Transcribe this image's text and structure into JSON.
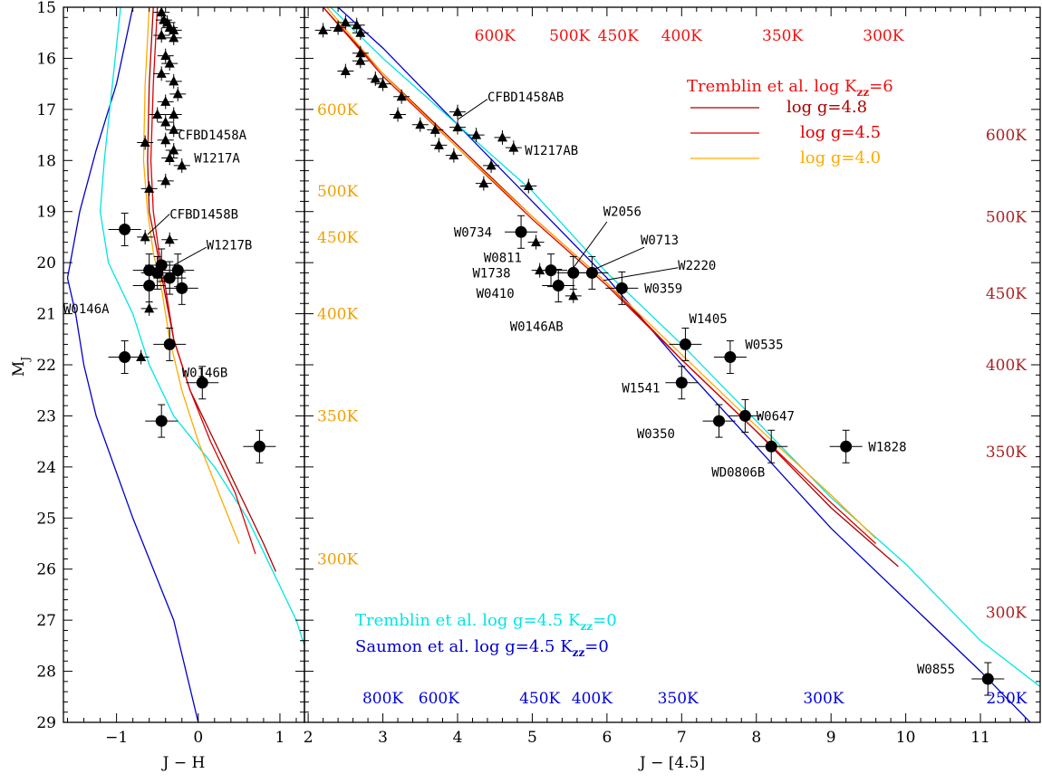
{
  "chart_data": [
    {
      "panel": "left",
      "type": "scatter",
      "xlabel": "J − H",
      "ylabel": "M",
      "ylabel_sub": "J",
      "xlim": [
        -1.65,
        1.3
      ],
      "ylim": [
        29,
        15
      ],
      "xticks": [
        -1,
        0,
        1
      ],
      "yticks": [
        15,
        16,
        17,
        18,
        19,
        20,
        21,
        22,
        23,
        24,
        25,
        26,
        27,
        28,
        29
      ],
      "triangles": [
        [
          -0.45,
          15.1
        ],
        [
          -0.42,
          15.25
        ],
        [
          -0.38,
          15.3
        ],
        [
          -0.35,
          15.4
        ],
        [
          -0.3,
          15.45
        ],
        [
          -0.45,
          15.55
        ],
        [
          -0.3,
          15.6
        ],
        [
          -0.4,
          15.95
        ],
        [
          -0.35,
          16.1
        ],
        [
          -0.3,
          16.45
        ],
        [
          -0.45,
          16.3
        ],
        [
          -0.25,
          16.7
        ],
        [
          -0.4,
          16.85
        ],
        [
          -0.5,
          17.1
        ],
        [
          -0.3,
          17.1
        ],
        [
          -0.4,
          17.25
        ],
        [
          -0.3,
          17.4
        ],
        [
          -0.4,
          17.6
        ],
        [
          -0.65,
          17.65
        ],
        [
          -0.3,
          17.8
        ],
        [
          -0.35,
          17.95
        ],
        [
          -0.2,
          18.1
        ],
        [
          -0.4,
          18.4
        ],
        [
          -0.6,
          18.55
        ],
        [
          -0.35,
          19.55
        ],
        [
          -0.65,
          19.5
        ],
        [
          -0.6,
          20.9
        ],
        [
          -0.7,
          21.85
        ]
      ],
      "circles": [
        [
          -0.9,
          19.35
        ],
        [
          -0.6,
          20.15
        ],
        [
          -0.6,
          20.45
        ],
        [
          -0.5,
          20.2
        ],
        [
          -0.45,
          20.05
        ],
        [
          -0.35,
          20.3
        ],
        [
          -0.25,
          20.15
        ],
        [
          -0.2,
          20.5
        ],
        [
          -0.35,
          21.6
        ],
        [
          -0.9,
          21.85
        ],
        [
          0.05,
          22.35
        ],
        [
          -0.45,
          23.1
        ],
        [
          0.75,
          23.6
        ]
      ],
      "labels": [
        {
          "text": "CFBD1458A",
          "x": -0.25,
          "y": 17.5
        },
        {
          "text": "W1217A",
          "x": -0.05,
          "y": 17.95
        },
        {
          "text": "CFBD1458B",
          "x": -0.35,
          "y": 19.05
        },
        {
          "text": "W1217B",
          "x": 0.1,
          "y": 19.65
        },
        {
          "text": "W0146A",
          "x": -1.65,
          "y": 20.9
        },
        {
          "text": "W0146B",
          "x": -0.2,
          "y": 22.15
        }
      ],
      "series": [
        {
          "model": "saumon",
          "color": "#0000cc",
          "points": [
            [
              -0.8,
              15.0
            ],
            [
              -1.0,
              16.5
            ],
            [
              -1.25,
              17.8
            ],
            [
              -1.45,
              19.0
            ],
            [
              -1.6,
              20.3
            ],
            [
              -1.5,
              21.0
            ],
            [
              -1.4,
              22.0
            ],
            [
              -1.25,
              23.0
            ],
            [
              -0.8,
              25.0
            ],
            [
              -0.3,
              27.0
            ],
            [
              0.0,
              29.0
            ]
          ]
        },
        {
          "model": "tremblin_kzz0",
          "color": "#00e5e5",
          "points": [
            [
              -0.95,
              15.0
            ],
            [
              -1.05,
              16.5
            ],
            [
              -1.15,
              18.0
            ],
            [
              -1.2,
              19.0
            ],
            [
              -1.1,
              20.0
            ],
            [
              -0.8,
              21.0
            ],
            [
              -0.6,
              22.0
            ],
            [
              -0.3,
              23.0
            ],
            [
              0.2,
              24.0
            ],
            [
              0.6,
              25.0
            ],
            [
              0.9,
              26.0
            ],
            [
              1.2,
              27.0
            ],
            [
              1.3,
              27.5
            ]
          ]
        },
        {
          "model": "logg48",
          "color": "#aa0000",
          "points": [
            [
              -0.55,
              15.0
            ],
            [
              -0.6,
              16.5
            ],
            [
              -0.62,
              18.0
            ],
            [
              -0.6,
              19.0
            ],
            [
              -0.5,
              19.8
            ],
            [
              -0.42,
              20.5
            ],
            [
              -0.3,
              21.5
            ],
            [
              -0.1,
              22.5
            ],
            [
              0.2,
              23.5
            ],
            [
              0.5,
              24.5
            ],
            [
              0.8,
              25.5
            ],
            [
              0.95,
              26.05
            ]
          ]
        },
        {
          "model": "logg45",
          "color": "#dd0000",
          "points": [
            [
              -0.5,
              15.0
            ],
            [
              -0.55,
              16.5
            ],
            [
              -0.58,
              18.0
            ],
            [
              -0.55,
              19.0
            ],
            [
              -0.48,
              19.8
            ],
            [
              -0.4,
              20.5
            ],
            [
              -0.3,
              21.5
            ],
            [
              -0.1,
              22.5
            ],
            [
              0.15,
              23.5
            ],
            [
              0.45,
              24.5
            ],
            [
              0.7,
              25.7
            ]
          ]
        },
        {
          "model": "logg40",
          "color": "#ffaa00",
          "points": [
            [
              -0.6,
              15.0
            ],
            [
              -0.65,
              16.5
            ],
            [
              -0.67,
              18.0
            ],
            [
              -0.62,
              19.0
            ],
            [
              -0.55,
              19.8
            ],
            [
              -0.45,
              20.5
            ],
            [
              -0.35,
              21.5
            ],
            [
              -0.2,
              22.5
            ],
            [
              0.0,
              23.5
            ],
            [
              0.3,
              24.7
            ],
            [
              0.5,
              25.5
            ]
          ]
        }
      ]
    },
    {
      "panel": "right",
      "type": "scatter",
      "xlabel": "J − [4.5]",
      "xlim": [
        1.95,
        11.8
      ],
      "ylim": [
        29,
        15
      ],
      "xticks": [
        2,
        3,
        4,
        5,
        6,
        7,
        8,
        9,
        10,
        11
      ],
      "triangles": [
        [
          2.2,
          15.45
        ],
        [
          2.4,
          15.4
        ],
        [
          2.5,
          15.3
        ],
        [
          2.65,
          15.35
        ],
        [
          2.7,
          15.5
        ],
        [
          2.5,
          16.25
        ],
        [
          2.7,
          16.05
        ],
        [
          2.7,
          15.9
        ],
        [
          2.9,
          16.4
        ],
        [
          3.0,
          16.5
        ],
        [
          3.25,
          16.75
        ],
        [
          3.2,
          17.1
        ],
        [
          3.5,
          17.3
        ],
        [
          3.7,
          17.4
        ],
        [
          3.75,
          17.7
        ],
        [
          4.0,
          17.05
        ],
        [
          4.0,
          17.35
        ],
        [
          3.95,
          17.9
        ],
        [
          4.25,
          17.5
        ],
        [
          4.45,
          18.1
        ],
        [
          4.6,
          17.55
        ],
        [
          4.35,
          18.45
        ],
        [
          4.75,
          17.75
        ],
        [
          4.95,
          18.5
        ],
        [
          5.05,
          19.6
        ],
        [
          5.1,
          20.15
        ],
        [
          5.55,
          20.65
        ]
      ],
      "circles": [
        [
          4.85,
          19.4
        ],
        [
          5.25,
          20.15
        ],
        [
          5.35,
          20.45
        ],
        [
          5.55,
          20.2
        ],
        [
          5.8,
          20.2
        ],
        [
          6.2,
          20.5
        ],
        [
          7.05,
          21.6
        ],
        [
          7.65,
          21.85
        ],
        [
          7.0,
          22.35
        ],
        [
          7.5,
          23.1
        ],
        [
          7.85,
          23.0
        ],
        [
          8.2,
          23.6
        ],
        [
          9.2,
          23.6
        ],
        [
          11.1,
          28.15
        ]
      ],
      "labels": [
        {
          "text": "CFBD1458AB",
          "x": 4.4,
          "y": 16.75
        },
        {
          "text": "W1217AB",
          "x": 4.9,
          "y": 17.8
        },
        {
          "text": "W0734",
          "x": 3.95,
          "y": 19.4
        },
        {
          "text": "W2056",
          "x": 5.95,
          "y": 19.0
        },
        {
          "text": "W0713",
          "x": 6.45,
          "y": 19.55
        },
        {
          "text": "W0811",
          "x": 4.35,
          "y": 19.9
        },
        {
          "text": "W2220",
          "x": 6.95,
          "y": 20.05
        },
        {
          "text": "W1738",
          "x": 4.2,
          "y": 20.2
        },
        {
          "text": "W0359",
          "x": 6.5,
          "y": 20.5
        },
        {
          "text": "W0410",
          "x": 4.25,
          "y": 20.6
        },
        {
          "text": "W0146AB",
          "x": 4.7,
          "y": 21.25
        },
        {
          "text": "W1405",
          "x": 7.1,
          "y": 21.1
        },
        {
          "text": "W0535",
          "x": 7.85,
          "y": 21.6
        },
        {
          "text": "W1541",
          "x": 6.2,
          "y": 22.45
        },
        {
          "text": "W0647",
          "x": 8.0,
          "y": 23.0
        },
        {
          "text": "W0350",
          "x": 6.4,
          "y": 23.35
        },
        {
          "text": "W1828",
          "x": 9.5,
          "y": 23.6
        },
        {
          "text": "WD0806B",
          "x": 7.4,
          "y": 24.1
        },
        {
          "text": "W0855",
          "x": 10.15,
          "y": 27.95
        }
      ],
      "series": [
        {
          "model": "saumon",
          "color": "#0000cc",
          "points": [
            [
              2.4,
              15.0
            ],
            [
              3.0,
              15.8
            ],
            [
              4.0,
              17.3
            ],
            [
              5.0,
              18.8
            ],
            [
              6.0,
              20.3
            ],
            [
              7.0,
              22.0
            ],
            [
              8.0,
              23.6
            ],
            [
              9.0,
              25.2
            ],
            [
              10.0,
              26.6
            ],
            [
              11.0,
              28.0
            ],
            [
              11.8,
              29.2
            ]
          ]
        },
        {
          "model": "tremblin_kzz0",
          "color": "#00e5e5",
          "points": [
            [
              2.3,
              15.0
            ],
            [
              3.0,
              16.0
            ],
            [
              4.0,
              17.3
            ],
            [
              5.0,
              18.6
            ],
            [
              6.0,
              20.2
            ],
            [
              7.0,
              21.6
            ],
            [
              8.0,
              23.1
            ],
            [
              9.0,
              24.6
            ],
            [
              10.0,
              25.9
            ],
            [
              11.0,
              27.4
            ],
            [
              11.8,
              28.3
            ]
          ]
        },
        {
          "model": "logg48",
          "color": "#aa0000",
          "points": [
            [
              2.2,
              15.0
            ],
            [
              3.0,
              16.3
            ],
            [
              4.0,
              17.7
            ],
            [
              5.0,
              19.1
            ],
            [
              6.0,
              20.4
            ],
            [
              7.0,
              21.9
            ],
            [
              8.0,
              23.3
            ],
            [
              9.0,
              24.8
            ],
            [
              9.9,
              25.95
            ]
          ]
        },
        {
          "model": "logg45",
          "color": "#dd0000",
          "points": [
            [
              2.2,
              15.0
            ],
            [
              3.0,
              16.35
            ],
            [
              4.0,
              17.75
            ],
            [
              5.0,
              19.15
            ],
            [
              6.0,
              20.45
            ],
            [
              7.0,
              21.9
            ],
            [
              8.0,
              23.3
            ],
            [
              9.0,
              24.7
            ],
            [
              9.6,
              25.5
            ]
          ]
        },
        {
          "model": "logg40",
          "color": "#ffaa00",
          "points": [
            [
              2.25,
              15.0
            ],
            [
              3.0,
              16.3
            ],
            [
              4.0,
              17.75
            ],
            [
              5.0,
              19.1
            ],
            [
              6.0,
              20.4
            ],
            [
              7.0,
              21.8
            ],
            [
              8.0,
              23.2
            ],
            [
              9.0,
              24.55
            ],
            [
              9.6,
              25.4
            ]
          ]
        }
      ]
    }
  ],
  "legend": {
    "title_main": "Tremblin et al. log K",
    "title_sub": "zz",
    "title_tail": "=6",
    "entries": [
      {
        "text": "log g=4.8",
        "color": "#aa0000"
      },
      {
        "text": "log g=4.5",
        "color": "#dd0000"
      },
      {
        "text": "log g=4.0",
        "color": "#ffaa00"
      }
    ],
    "tremblin_k0": {
      "main": "Tremblin et al. log g=4.5 K",
      "sub": "zz",
      "tail": "=0",
      "color": "#00e5e5"
    },
    "saumon_k0": {
      "main": "Saumon et al. log g=4.5 K",
      "sub": "zz",
      "tail": "=0",
      "color": "#0000cc"
    }
  },
  "temperatures": {
    "top_red": [
      {
        "text": "600K",
        "x": 4.5
      },
      {
        "text": "500K",
        "x": 5.5
      },
      {
        "text": "450K",
        "x": 6.15
      },
      {
        "text": "400K",
        "x": 7.0
      },
      {
        "text": "350K",
        "x": 8.35
      },
      {
        "text": "300K",
        "x": 9.7
      }
    ],
    "left_orange": [
      {
        "text": "600K",
        "y": 17.0
      },
      {
        "text": "500K",
        "y": 18.6
      },
      {
        "text": "450K",
        "y": 19.5
      },
      {
        "text": "400K",
        "y": 21.0
      },
      {
        "text": "350K",
        "y": 23.0
      },
      {
        "text": "300K",
        "y": 25.8
      }
    ],
    "right_darkred": [
      {
        "text": "600K",
        "y": 17.5
      },
      {
        "text": "500K",
        "y": 19.1
      },
      {
        "text": "450K",
        "y": 20.6
      },
      {
        "text": "400K",
        "y": 22.0
      },
      {
        "text": "350K",
        "y": 23.7
      },
      {
        "text": "300K",
        "y": 26.85
      }
    ],
    "bottom_blue": [
      {
        "text": "800K",
        "x": 3.0
      },
      {
        "text": "600K",
        "x": 3.75
      },
      {
        "text": "450K",
        "x": 5.1
      },
      {
        "text": "400K",
        "x": 5.8
      },
      {
        "text": "350K",
        "x": 6.95
      },
      {
        "text": "300K",
        "x": 8.9
      },
      {
        "text": "250K",
        "x": 11.35
      }
    ]
  },
  "colors": {
    "temp_red": "#ee1111",
    "temp_orange": "#f0a000",
    "temp_darkred": "#aa2222",
    "temp_blue": "#0000dd"
  }
}
